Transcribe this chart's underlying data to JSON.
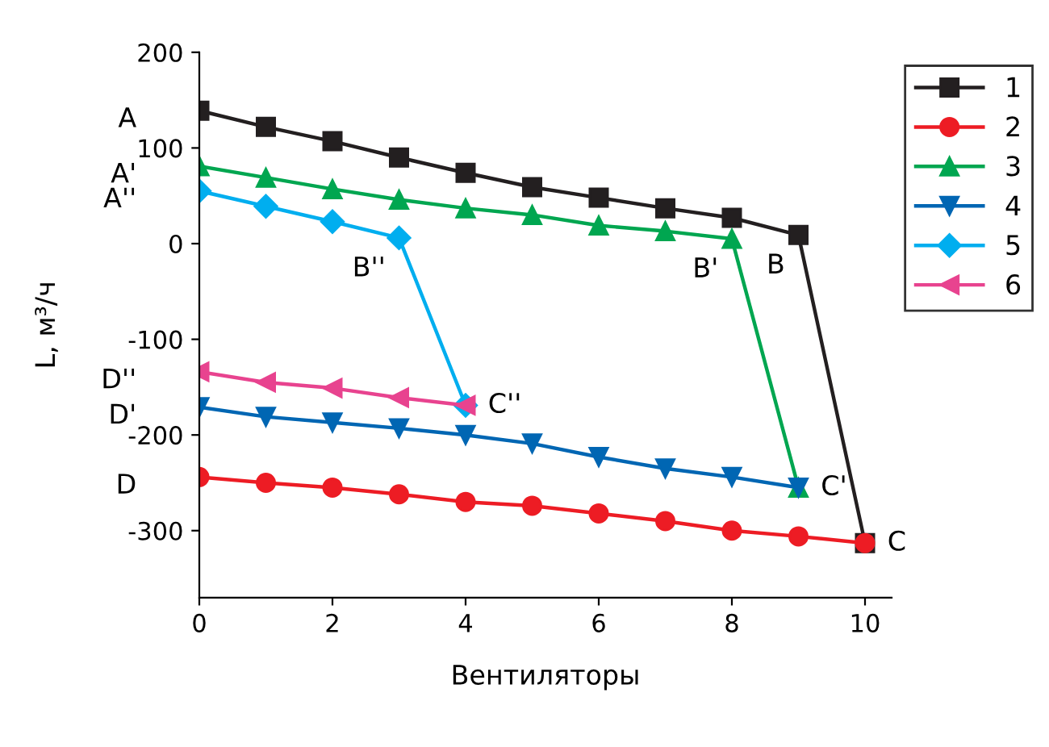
{
  "chart_data": {
    "type": "line",
    "xlabel": "Вентиляторы",
    "ylabel": "L, м³/ч",
    "xlim": [
      0,
      10.4
    ],
    "ylim": [
      -370,
      200
    ],
    "xticks": [
      0,
      2,
      4,
      6,
      8,
      10
    ],
    "yticks": [
      200,
      100,
      0,
      -100,
      -200,
      -300
    ],
    "grid": false,
    "legend": "top right",
    "line_style": "solid",
    "series": [
      {
        "name": "1",
        "color": "#231f20",
        "marker": "square",
        "x": [
          0,
          1,
          2,
          3,
          4,
          5,
          6,
          7,
          8,
          9,
          10
        ],
        "values": [
          139,
          122,
          107,
          90,
          74,
          59,
          48,
          37,
          27,
          9,
          -313
        ]
      },
      {
        "name": "2",
        "color": "#ed1c24",
        "marker": "circle",
        "x": [
          0,
          1,
          2,
          3,
          4,
          5,
          6,
          7,
          8,
          9,
          10
        ],
        "values": [
          -244,
          -250,
          -255,
          -262,
          -270,
          -274,
          -282,
          -290,
          -300,
          -306,
          -313
        ]
      },
      {
        "name": "3",
        "color": "#00a650",
        "marker": "triangle",
        "x": [
          0,
          1,
          2,
          3,
          4,
          5,
          6,
          7,
          8,
          9
        ],
        "values": [
          81,
          69,
          57,
          46,
          37,
          30,
          19,
          13,
          5,
          -255
        ]
      },
      {
        "name": "4",
        "color": "#0066b3",
        "marker": "triangle_down",
        "x": [
          0,
          1,
          2,
          3,
          4,
          5,
          6,
          7,
          8,
          9
        ],
        "values": [
          -171,
          -181,
          -187,
          -193,
          -200,
          -209,
          -223,
          -235,
          -244,
          -255
        ]
      },
      {
        "name": "5",
        "color": "#00aeef",
        "marker": "diamond",
        "x": [
          0,
          1,
          2,
          3,
          4
        ],
        "values": [
          55,
          39,
          23,
          6,
          -169
        ]
      },
      {
        "name": "6",
        "color": "#e8438f",
        "marker": "triangle_left",
        "x": [
          0,
          1,
          2,
          3,
          4
        ],
        "values": [
          -134,
          -145,
          -151,
          -161,
          -169
        ]
      }
    ],
    "annotations": [
      {
        "text": "A",
        "x": 0,
        "y": 139
      },
      {
        "text": "A'",
        "x": 0,
        "y": 81
      },
      {
        "text": "A''",
        "x": 0,
        "y": 55
      },
      {
        "text": "B",
        "x": 9,
        "y": 9
      },
      {
        "text": "B'",
        "x": 8,
        "y": 5
      },
      {
        "text": "B''",
        "x": 3,
        "y": 6
      },
      {
        "text": "C",
        "x": 10,
        "y": -313
      },
      {
        "text": "C'",
        "x": 9,
        "y": -255
      },
      {
        "text": "C''",
        "x": 4,
        "y": -169
      },
      {
        "text": "D",
        "x": 0,
        "y": -244
      },
      {
        "text": "D'",
        "x": 0,
        "y": -171
      },
      {
        "text": "D''",
        "x": 0,
        "y": -134
      }
    ]
  }
}
